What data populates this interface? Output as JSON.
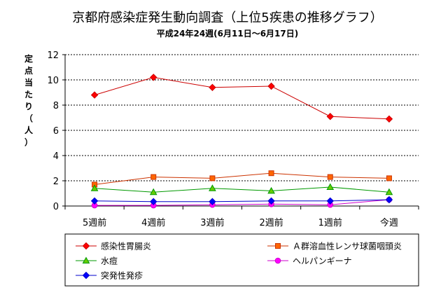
{
  "chart_data": {
    "type": "line",
    "title": "京都府感染症発生動向調査（上位5疾患の推移グラフ）",
    "subtitle": "平成24年24週(6月11日～6月17日)",
    "ylabel": "定点当たり（人）",
    "xlabel": "",
    "categories": [
      "5週前",
      "4週前",
      "3週前",
      "2週前",
      "1週前",
      "今週"
    ],
    "ylim": [
      0,
      12
    ],
    "yticks": [
      "0",
      "2",
      "4",
      "6",
      "8",
      "10",
      "12"
    ],
    "grid": true,
    "legend_position": "bottom",
    "series": [
      {
        "name": "感染性胃腸炎",
        "values": [
          8.8,
          10.2,
          9.4,
          9.5,
          7.1,
          6.9
        ],
        "color": "#cc0000",
        "marker_color": "#ff0000",
        "marker": "diamond"
      },
      {
        "name": "Ａ群溶血性レンサ球菌咽頭炎",
        "values": [
          1.7,
          2.3,
          2.2,
          2.6,
          2.3,
          2.2
        ],
        "color": "#cc3300",
        "marker_color": "#ff6600",
        "marker": "square"
      },
      {
        "name": "水痘",
        "values": [
          1.4,
          1.1,
          1.4,
          1.2,
          1.5,
          1.1
        ],
        "color": "#009900",
        "marker_color": "#66cc00",
        "marker": "triangle"
      },
      {
        "name": "ヘルパンギーナ",
        "values": [
          0.05,
          0.05,
          0.1,
          0.15,
          0.1,
          0.5
        ],
        "color": "#cc00cc",
        "marker_color": "#ff00ff",
        "marker": "circle"
      },
      {
        "name": "突発性発疹",
        "values": [
          0.4,
          0.35,
          0.35,
          0.4,
          0.4,
          0.5
        ],
        "color": "#0000cc",
        "marker_color": "#0000ff",
        "marker": "diamond"
      }
    ]
  }
}
